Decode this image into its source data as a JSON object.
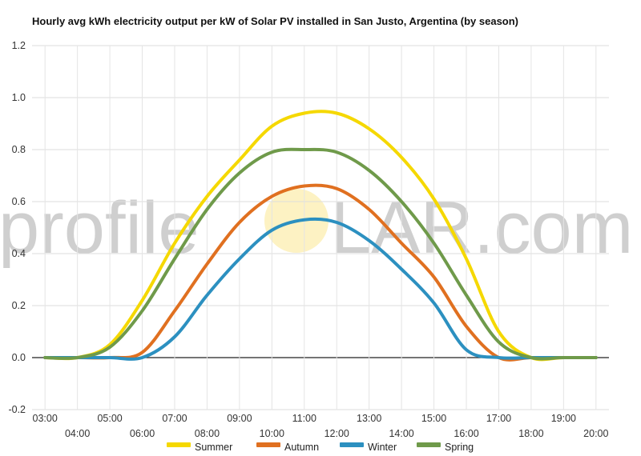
{
  "chart_data": {
    "type": "line",
    "title": "Hourly avg kWh electricity output per kW of Solar PV installed in San Justo, Argentina (by season)",
    "xlabel": "",
    "ylabel": "",
    "ylim": [
      -0.2,
      1.2
    ],
    "yticks": [
      -0.2,
      0.0,
      0.2,
      0.4,
      0.6,
      0.8,
      1.0,
      1.2
    ],
    "ytick_labels": [
      "-0.2",
      "0.0",
      "0.2",
      "0.4",
      "0.6",
      "0.8",
      "1.0",
      "1.2"
    ],
    "xlim": [
      2.6,
      20.4
    ],
    "xticks": [
      3,
      4,
      5,
      6,
      7,
      8,
      9,
      10,
      11,
      12,
      13,
      14,
      15,
      16,
      17,
      18,
      19,
      20
    ],
    "xtick_labels": [
      "03:00",
      "04:00",
      "05:00",
      "06:00",
      "07:00",
      "08:00",
      "09:00",
      "10:00",
      "11:00",
      "12:00",
      "13:00",
      "14:00",
      "15:00",
      "16:00",
      "17:00",
      "18:00",
      "19:00",
      "20:00"
    ],
    "grid": true,
    "legend_position": "bottom",
    "x": [
      3,
      4,
      5,
      6,
      7,
      8,
      9,
      10,
      11,
      12,
      13,
      14,
      15,
      16,
      17,
      18,
      19,
      20
    ],
    "series": [
      {
        "name": "Summer",
        "color": "#f5d800",
        "values": [
          0.0,
          0.0,
          0.05,
          0.22,
          0.44,
          0.62,
          0.76,
          0.89,
          0.94,
          0.94,
          0.88,
          0.77,
          0.61,
          0.38,
          0.1,
          0.0,
          0.0,
          0.0
        ]
      },
      {
        "name": "Autumn",
        "color": "#e07020",
        "values": [
          0.0,
          0.0,
          0.0,
          0.02,
          0.18,
          0.36,
          0.52,
          0.62,
          0.66,
          0.65,
          0.57,
          0.44,
          0.31,
          0.12,
          0.0,
          0.0,
          0.0,
          0.0
        ]
      },
      {
        "name": "Winter",
        "color": "#2c90c0",
        "values": [
          0.0,
          0.0,
          0.0,
          0.0,
          0.08,
          0.24,
          0.38,
          0.49,
          0.53,
          0.52,
          0.45,
          0.34,
          0.21,
          0.03,
          0.0,
          0.0,
          0.0,
          0.0
        ]
      },
      {
        "name": "Spring",
        "color": "#6f9a4a",
        "values": [
          0.0,
          0.0,
          0.04,
          0.18,
          0.38,
          0.57,
          0.71,
          0.79,
          0.8,
          0.79,
          0.72,
          0.6,
          0.44,
          0.24,
          0.06,
          0.0,
          0.0,
          0.0
        ]
      }
    ]
  },
  "watermark": {
    "left": "profile",
    "right": "LAR.com",
    "sun_color": "#fbe27a"
  }
}
